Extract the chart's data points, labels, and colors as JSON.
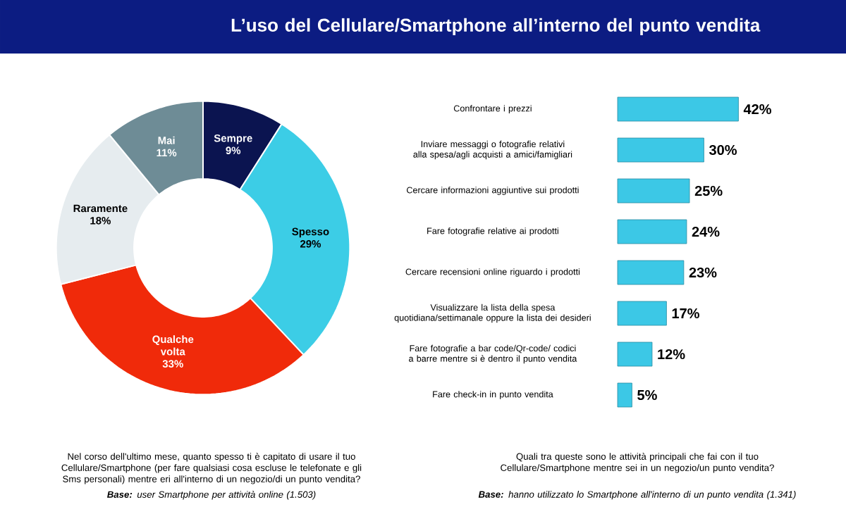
{
  "chart_data": [
    {
      "type": "donut",
      "title": "L’uso del Cellulare/Smartphone all’interno del punto vendita",
      "categories": [
        "Sempre",
        "Spesso",
        "Qualche volta",
        "Raramente",
        "Mai"
      ],
      "values": [
        9,
        29,
        33,
        18,
        11
      ],
      "value_labels": [
        "9%",
        "29%",
        "33%",
        "18%",
        "11%"
      ],
      "colors": [
        "#0b1450",
        "#3ccde6",
        "#f02a0a",
        "#e6ecef",
        "#6e8c96"
      ],
      "annotations": [
        "Nel corso dell'ultimo mese, quanto spesso ti è capitato di usare il tuo Cellulare/Smartphone (per fare qualsiasi cosa escluse le telefonate e gli Sms personali) mentre eri all'interno di un negozio/di un punto vendita?",
        "**Base:** user Smartphone per attività online (1.503)"
      ]
    },
    {
      "type": "bar",
      "orientation": "horizontal",
      "color": "#3cc8e6",
      "categories": [
        "Confrontare i prezzi",
        "Inviare messaggi o fotografie relativi alla spesa/agli acquisti a amici/famigliari",
        "Cercare informazioni aggiuntive sui prodotti",
        "Fare fotografie relative ai prodotti",
        "Cercare recensioni online riguardo i prodotti",
        "Visualizzare la lista della spesa quotidiana/settimanale oppure la lista dei desideri",
        "Fare fotografie a bar code/Qr-code/ codici a barre mentre si è dentro il punto vendita",
        "Fare check-in in punto vendita"
      ],
      "values": [
        42,
        30,
        25,
        24,
        23,
        17,
        12,
        5
      ],
      "value_labels": [
        "42%",
        "30%",
        "25%",
        "24%",
        "23%",
        "17%",
        "12%",
        "5%"
      ],
      "annotations": [
        "Quali tra queste sono le attività principali che fai con il tuo Cellulare/Smartphone mentre sei in un negozio/un punto vendita?",
        "**Base:** hanno utilizzato lo Smartphone all'interno di un punto vendita (1.341)"
      ]
    }
  ]
}
